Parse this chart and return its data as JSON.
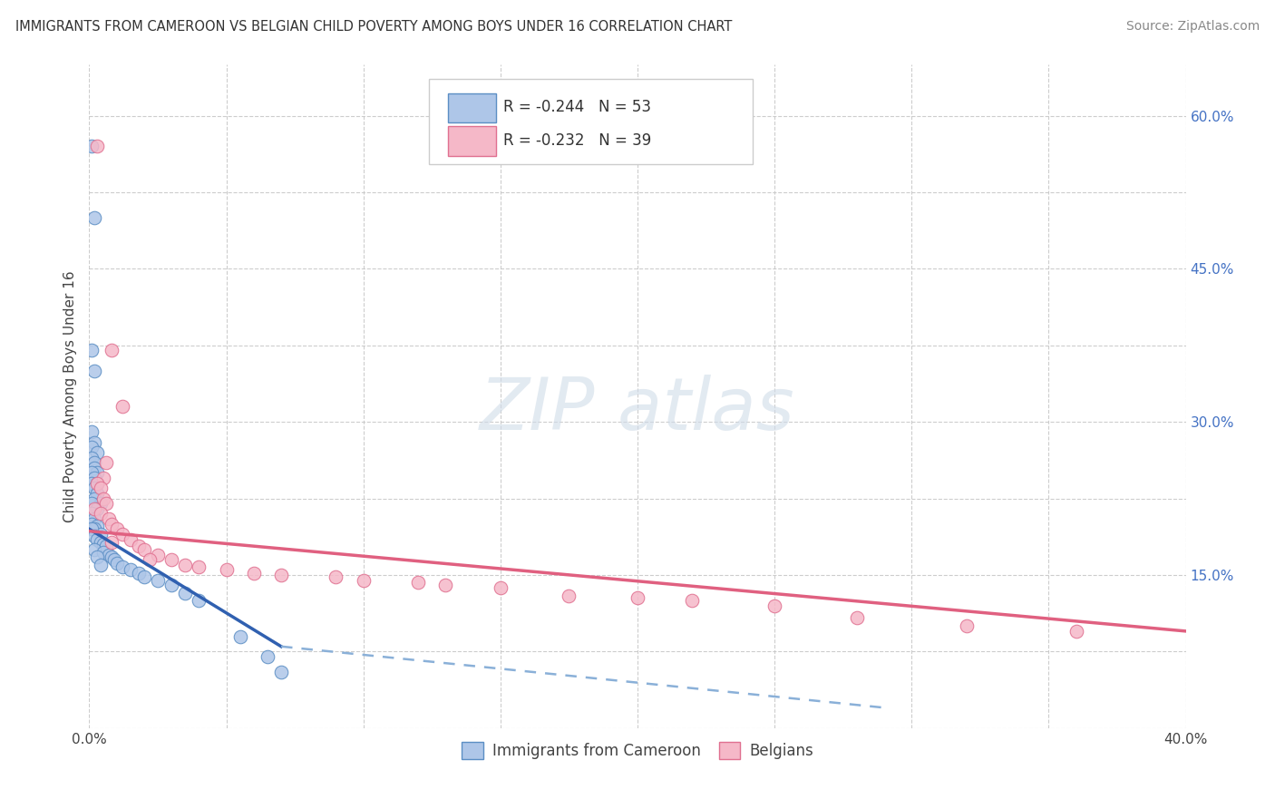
{
  "title": "IMMIGRANTS FROM CAMEROON VS BELGIAN CHILD POVERTY AMONG BOYS UNDER 16 CORRELATION CHART",
  "source": "Source: ZipAtlas.com",
  "ylabel": "Child Poverty Among Boys Under 16",
  "xlim": [
    0.0,
    0.4
  ],
  "ylim": [
    0.0,
    0.65
  ],
  "r_blue": -0.244,
  "n_blue": 53,
  "r_pink": -0.232,
  "n_pink": 39,
  "blue_scatter_color": "#aec6e8",
  "blue_edge_color": "#5b8ec4",
  "pink_scatter_color": "#f5b8c8",
  "pink_edge_color": "#e07090",
  "blue_line_color": "#3060b0",
  "pink_line_color": "#e06080",
  "dash_line_color": "#8ab0d8",
  "watermark_color": "#d0dce8",
  "scatter_blue": [
    [
      0.001,
      0.57
    ],
    [
      0.002,
      0.5
    ],
    [
      0.001,
      0.37
    ],
    [
      0.002,
      0.35
    ],
    [
      0.001,
      0.29
    ],
    [
      0.002,
      0.28
    ],
    [
      0.001,
      0.275
    ],
    [
      0.003,
      0.27
    ],
    [
      0.001,
      0.265
    ],
    [
      0.002,
      0.26
    ],
    [
      0.002,
      0.255
    ],
    [
      0.003,
      0.25
    ],
    [
      0.001,
      0.25
    ],
    [
      0.002,
      0.245
    ],
    [
      0.001,
      0.24
    ],
    [
      0.003,
      0.24
    ],
    [
      0.002,
      0.235
    ],
    [
      0.003,
      0.23
    ],
    [
      0.002,
      0.225
    ],
    [
      0.004,
      0.22
    ],
    [
      0.001,
      0.22
    ],
    [
      0.003,
      0.215
    ],
    [
      0.001,
      0.21
    ],
    [
      0.002,
      0.205
    ],
    [
      0.001,
      0.2
    ],
    [
      0.003,
      0.198
    ],
    [
      0.002,
      0.195
    ],
    [
      0.004,
      0.19
    ],
    [
      0.001,
      0.195
    ],
    [
      0.002,
      0.188
    ],
    [
      0.003,
      0.185
    ],
    [
      0.004,
      0.182
    ],
    [
      0.005,
      0.18
    ],
    [
      0.006,
      0.178
    ],
    [
      0.002,
      0.175
    ],
    [
      0.005,
      0.172
    ],
    [
      0.007,
      0.17
    ],
    [
      0.008,
      0.168
    ],
    [
      0.003,
      0.168
    ],
    [
      0.009,
      0.165
    ],
    [
      0.01,
      0.162
    ],
    [
      0.004,
      0.16
    ],
    [
      0.012,
      0.158
    ],
    [
      0.015,
      0.155
    ],
    [
      0.018,
      0.152
    ],
    [
      0.02,
      0.148
    ],
    [
      0.025,
      0.145
    ],
    [
      0.03,
      0.14
    ],
    [
      0.035,
      0.132
    ],
    [
      0.04,
      0.125
    ],
    [
      0.055,
      0.09
    ],
    [
      0.065,
      0.07
    ],
    [
      0.07,
      0.055
    ]
  ],
  "scatter_pink": [
    [
      0.003,
      0.57
    ],
    [
      0.008,
      0.37
    ],
    [
      0.012,
      0.315
    ],
    [
      0.006,
      0.26
    ],
    [
      0.005,
      0.245
    ],
    [
      0.003,
      0.24
    ],
    [
      0.004,
      0.235
    ],
    [
      0.005,
      0.225
    ],
    [
      0.006,
      0.22
    ],
    [
      0.002,
      0.215
    ],
    [
      0.004,
      0.21
    ],
    [
      0.007,
      0.205
    ],
    [
      0.008,
      0.2
    ],
    [
      0.01,
      0.195
    ],
    [
      0.012,
      0.19
    ],
    [
      0.015,
      0.185
    ],
    [
      0.008,
      0.182
    ],
    [
      0.018,
      0.178
    ],
    [
      0.02,
      0.175
    ],
    [
      0.025,
      0.17
    ],
    [
      0.022,
      0.165
    ],
    [
      0.03,
      0.165
    ],
    [
      0.035,
      0.16
    ],
    [
      0.04,
      0.158
    ],
    [
      0.05,
      0.155
    ],
    [
      0.06,
      0.152
    ],
    [
      0.07,
      0.15
    ],
    [
      0.09,
      0.148
    ],
    [
      0.1,
      0.145
    ],
    [
      0.12,
      0.143
    ],
    [
      0.13,
      0.14
    ],
    [
      0.15,
      0.138
    ],
    [
      0.175,
      0.13
    ],
    [
      0.2,
      0.128
    ],
    [
      0.22,
      0.125
    ],
    [
      0.25,
      0.12
    ],
    [
      0.28,
      0.108
    ],
    [
      0.32,
      0.1
    ],
    [
      0.36,
      0.095
    ]
  ],
  "blue_line_x": [
    0.0,
    0.07
  ],
  "blue_line_y": [
    0.195,
    0.08
  ],
  "pink_line_x": [
    0.0,
    0.4
  ],
  "pink_line_y": [
    0.193,
    0.095
  ],
  "dash_line_x": [
    0.07,
    0.29
  ],
  "dash_line_y": [
    0.08,
    0.02
  ]
}
